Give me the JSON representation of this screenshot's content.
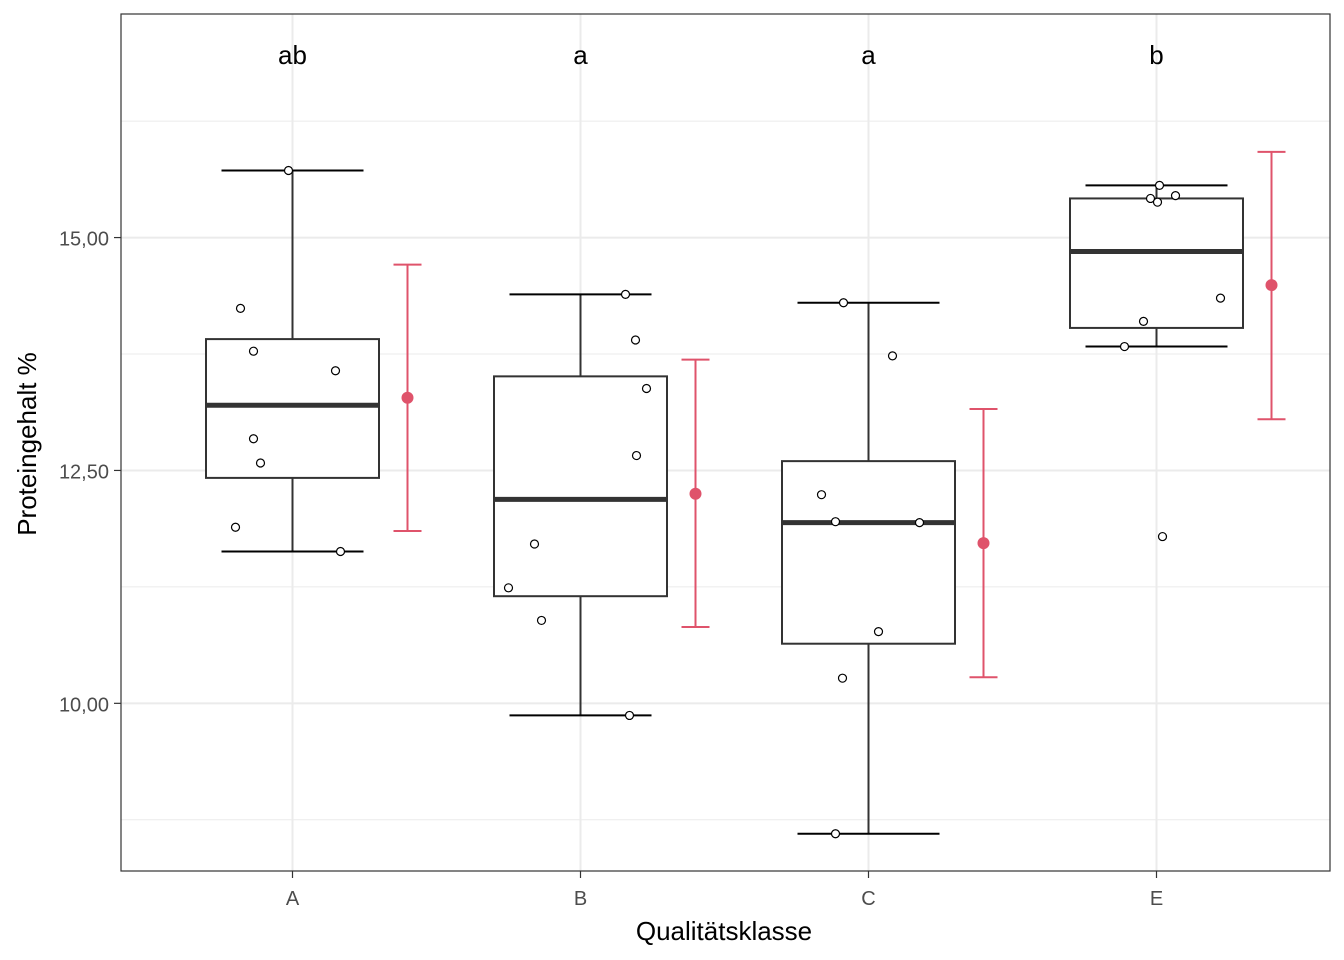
{
  "chart_data": {
    "type": "boxplot",
    "xlabel": "Qualitätsklasse",
    "ylabel": "Proteingehalt %",
    "categories": [
      "A",
      "B",
      "C",
      "E"
    ],
    "ylim": [
      8.2,
      17.4
    ],
    "y_major_ticks": [
      10.0,
      12.5,
      15.0
    ],
    "y_major_tick_labels": [
      "10,00",
      "12,50",
      "15,00"
    ],
    "y_minor_ticks": [
      8.75,
      11.25,
      13.75,
      16.25
    ],
    "grid": true,
    "group_letters": [
      "ab",
      "a",
      "a",
      "b"
    ],
    "boxes": [
      {
        "category": "A",
        "lower_whisker": 11.63,
        "q1": 12.42,
        "median": 13.2,
        "q3": 13.91,
        "upper_whisker": 15.72
      },
      {
        "category": "B",
        "lower_whisker": 9.87,
        "q1": 11.15,
        "median": 12.19,
        "q3": 13.51,
        "upper_whisker": 14.39
      },
      {
        "category": "C",
        "lower_whisker": 8.6,
        "q1": 10.64,
        "median": 11.94,
        "q3": 12.6,
        "upper_whisker": 14.3
      },
      {
        "category": "E",
        "lower_whisker": 13.83,
        "q1": 14.03,
        "median": 14.85,
        "q3": 15.42,
        "upper_whisker": 15.56
      }
    ],
    "points": [
      {
        "category": "A",
        "values": [
          15.72,
          14.24,
          13.78,
          13.57,
          12.84,
          12.58,
          11.89,
          11.63
        ]
      },
      {
        "category": "B",
        "values": [
          14.39,
          13.9,
          13.38,
          12.66,
          11.71,
          11.24,
          10.89,
          9.87
        ]
      },
      {
        "category": "C",
        "values": [
          14.3,
          13.73,
          12.24,
          11.95,
          11.94,
          10.77,
          10.27,
          8.6
        ]
      },
      {
        "category": "E",
        "values": [
          15.56,
          15.45,
          15.42,
          15.38,
          14.35,
          14.1,
          13.83,
          11.79
        ]
      }
    ],
    "mean_ci": [
      {
        "category": "A",
        "mean": 13.28,
        "lower": 11.85,
        "upper": 14.71
      },
      {
        "category": "B",
        "mean": 12.25,
        "lower": 10.82,
        "upper": 13.69
      },
      {
        "category": "C",
        "mean": 11.72,
        "lower": 10.28,
        "upper": 13.16
      },
      {
        "category": "E",
        "mean": 14.49,
        "lower": 13.05,
        "upper": 15.92
      }
    ],
    "colors": {
      "box": "#333333",
      "mean_ci": "#DF536B",
      "grid": "#EBEBEB",
      "panel_border": "#333333"
    }
  }
}
